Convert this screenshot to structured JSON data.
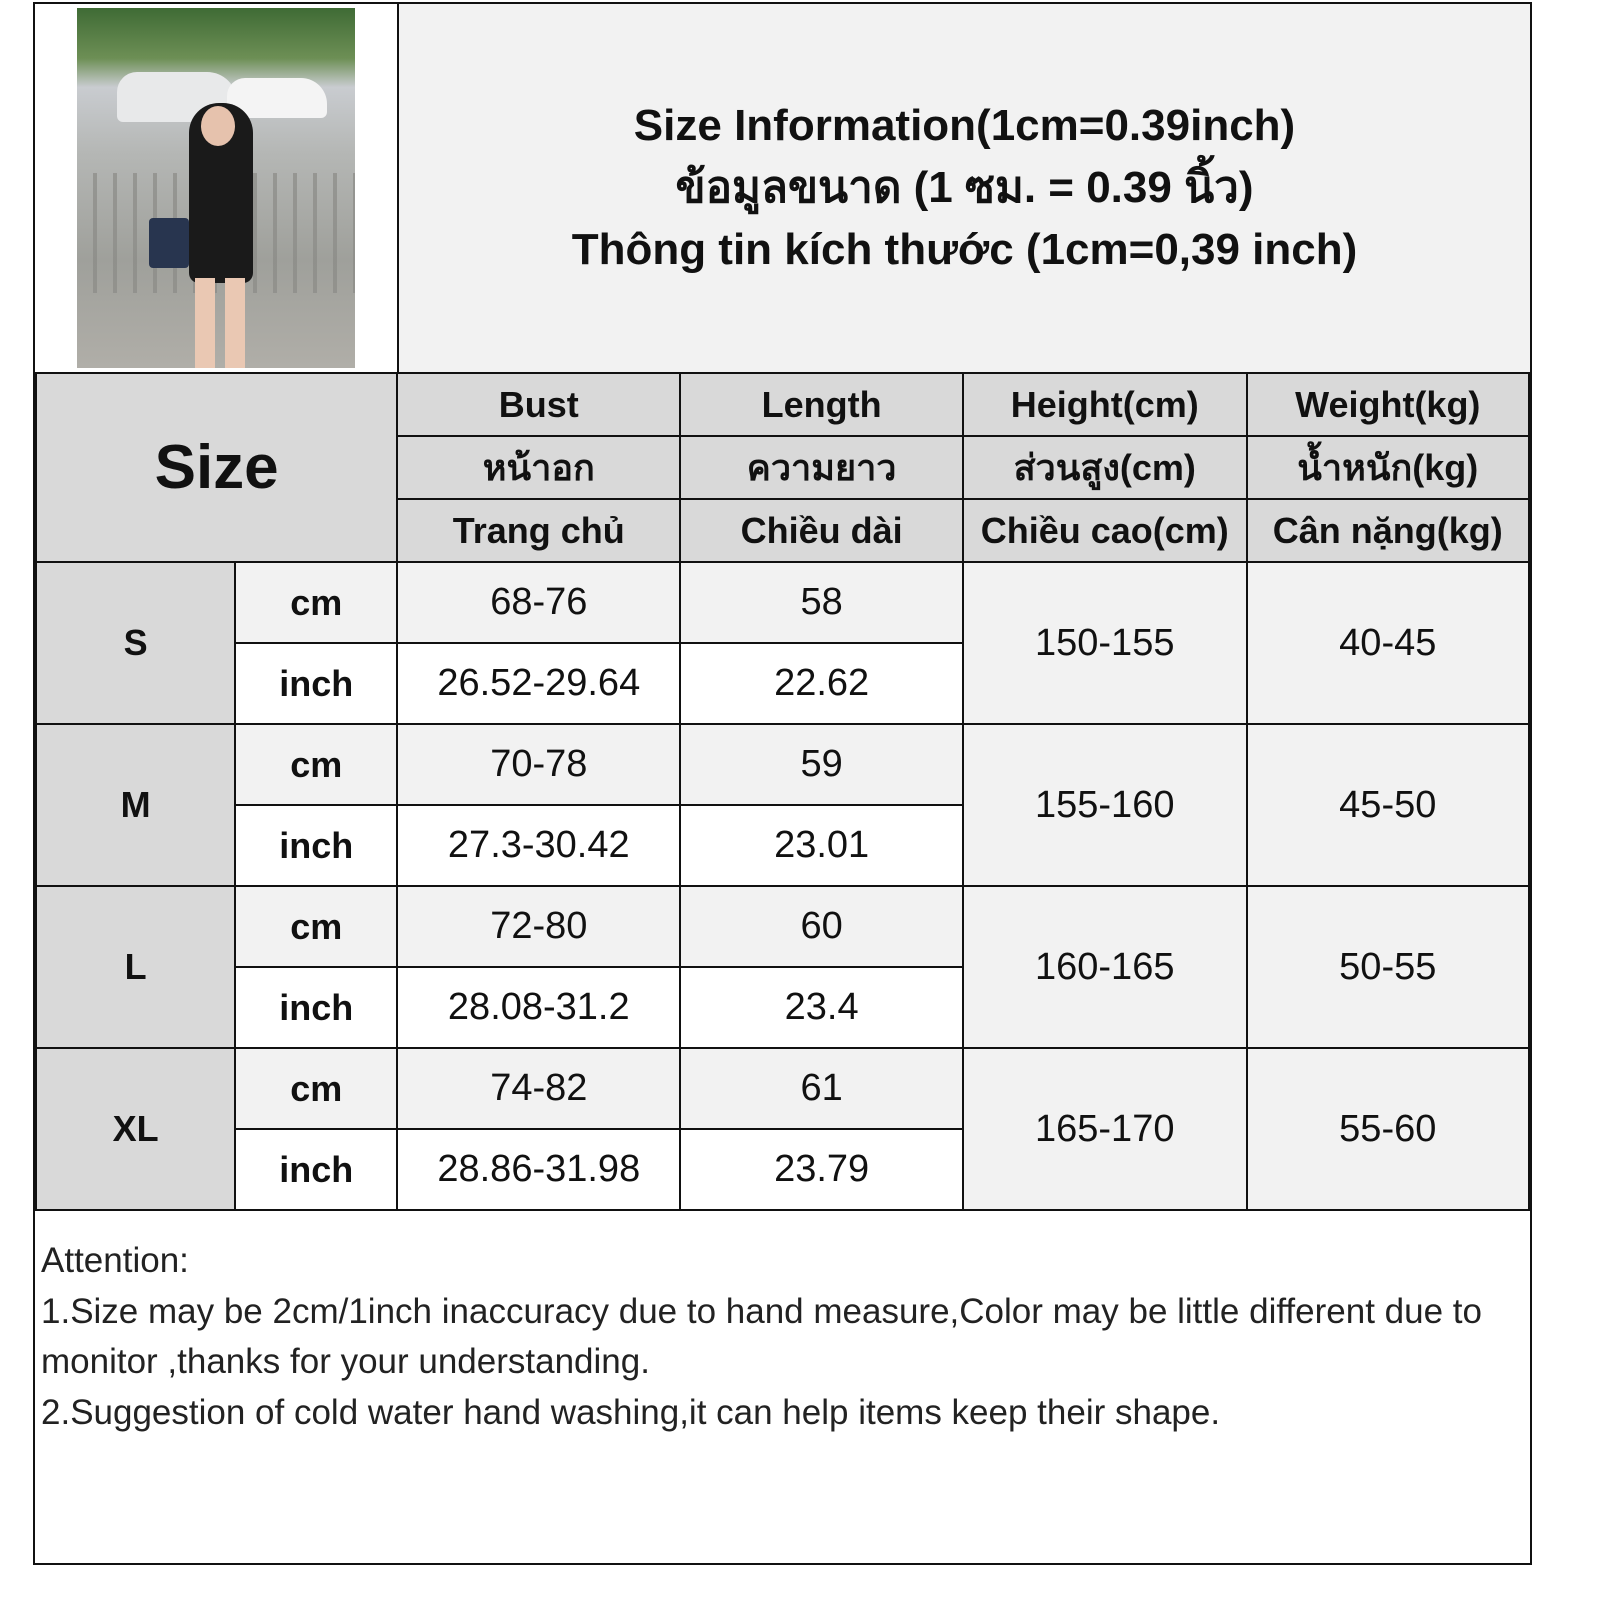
{
  "title_lines": [
    "Size Information(1cm=0.39inch)",
    "ข้อมูลขนาด (1 ซม. = 0.39 นิ้ว)",
    "Thông tin kích thước (1cm=0,39 inch)"
  ],
  "table": {
    "size_label": "Size",
    "columns": [
      {
        "en": "Bust",
        "th": "หน้าอก",
        "vi": "Trang chủ"
      },
      {
        "en": "Length",
        "th": "ความยาว",
        "vi": "Chiều dài"
      },
      {
        "en": "Height(cm)",
        "th": "ส่วนสูง(cm)",
        "vi": "Chiều cao(cm)"
      },
      {
        "en": "Weight(kg)",
        "th": "น้ำหนัก(kg)",
        "vi": "Cân nặng(kg)"
      }
    ],
    "rows": [
      {
        "size": "S",
        "cm_label": "cm",
        "inch_label": "inch",
        "bust_cm": "68-76",
        "length_cm": "58",
        "bust_inch": "26.52-29.64",
        "length_inch": "22.62",
        "height": "150-155",
        "weight": "40-45"
      },
      {
        "size": "M",
        "cm_label": "cm",
        "inch_label": "inch",
        "bust_cm": "70-78",
        "length_cm": "59",
        "bust_inch": "27.3-30.42",
        "length_inch": "23.01",
        "height": "155-160",
        "weight": "45-50"
      },
      {
        "size": "L",
        "cm_label": "cm",
        "inch_label": "inch",
        "bust_cm": "72-80",
        "length_cm": "60",
        "bust_inch": "28.08-31.2",
        "length_inch": "23.4",
        "height": "160-165",
        "weight": "50-55"
      },
      {
        "size": "XL",
        "cm_label": "cm",
        "inch_label": "inch",
        "bust_cm": "74-82",
        "length_cm": "61",
        "bust_inch": "28.86-31.98",
        "length_inch": "23.79",
        "height": "165-170",
        "weight": "55-60"
      }
    ]
  },
  "notes": {
    "heading": "Attention:",
    "items": [
      "1.Size may be 2cm/1inch inaccuracy due to hand measure,Color may be little different due to monitor ,thanks for your understanding.",
      "2.Suggestion of cold water hand washing,it can help items keep their shape."
    ]
  },
  "colors": {
    "header_bg": "#d9d9d9",
    "cm_row_bg": "#f2f2f2",
    "inch_row_bg": "#ffffff",
    "border": "#111111"
  }
}
